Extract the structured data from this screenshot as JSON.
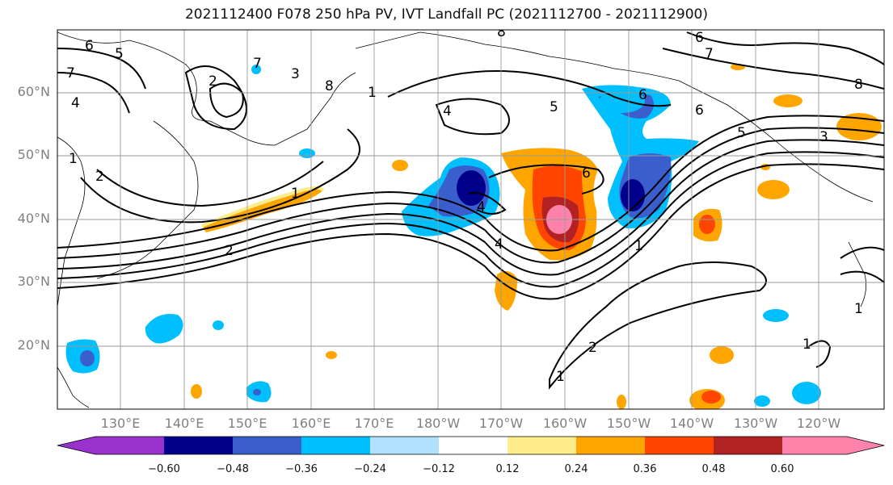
{
  "title": "2021112400 F078 250 hPa PV, IVT Landfall PC (2021112700 - 2021112900)",
  "lat_labels": [
    "60°N",
    "50°N",
    "40°N",
    "30°N",
    "20°N"
  ],
  "lon_labels": [
    "130°E",
    "140°E",
    "150°E",
    "160°E",
    "170°E",
    "180°W",
    "170°W",
    "160°W",
    "150°W",
    "140°W",
    "130°W",
    "120°W"
  ],
  "colorbar": {
    "ticks": [
      "−0.60",
      "−0.48",
      "−0.36",
      "−0.24",
      "−0.12",
      "0.12",
      "0.24",
      "0.36",
      "0.48",
      "0.60"
    ],
    "colors": [
      "#9932cc",
      "#00008b",
      "#3a5fcd",
      "#00bfff",
      "#b0e2ff",
      "#ffffff",
      "#ffec8b",
      "#ffa500",
      "#ff4500",
      "#b22222",
      "#ff82ab"
    ]
  },
  "contour_labels": [
    "6",
    "5",
    "7",
    "4",
    "2",
    "3",
    "8",
    "7",
    "1",
    "2",
    "5",
    "4",
    "6",
    "6",
    "5",
    "6",
    "7",
    "8",
    "3",
    "4",
    "2",
    "1",
    "1",
    "1",
    "1",
    "2",
    "1",
    "4",
    "6",
    "1",
    "8"
  ]
}
